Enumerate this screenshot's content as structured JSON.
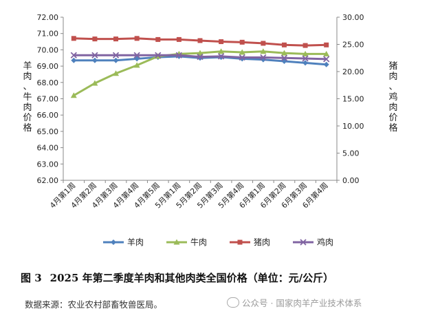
{
  "chart_data": {
    "type": "line",
    "categories": [
      "4月第1周",
      "4月第2周",
      "4月第3周",
      "4月第4周",
      "4月第5周",
      "5月第1周",
      "5月第2周",
      "5月第3周",
      "5月第4周",
      "6月第1周",
      "6月第2周",
      "6月第3周",
      "6月第4周"
    ],
    "left_axis": {
      "label": "羊肉、牛肉价格",
      "ylim": [
        62.0,
        72.0
      ],
      "ticks": [
        "62.00",
        "63.00",
        "64.00",
        "65.00",
        "66.00",
        "67.00",
        "68.00",
        "69.00",
        "70.00",
        "71.00",
        "72.00"
      ]
    },
    "right_axis": {
      "label": "猪肉、鸡肉价格",
      "ylim": [
        0.0,
        30.0
      ],
      "ticks": [
        "0.00",
        "5.00",
        "10.00",
        "15.00",
        "20.00",
        "25.00",
        "30.00"
      ]
    },
    "series": [
      {
        "name": "羊肉",
        "axis": "left",
        "color": "#4f81bd",
        "marker": "diamond",
        "values": [
          69.35,
          69.35,
          69.35,
          69.45,
          69.55,
          69.6,
          69.5,
          69.55,
          69.45,
          69.4,
          69.3,
          69.2,
          69.1
        ]
      },
      {
        "name": "牛肉",
        "axis": "left",
        "color": "#9bbb59",
        "marker": "triangle",
        "values": [
          67.2,
          67.95,
          68.55,
          69.05,
          69.6,
          69.75,
          69.8,
          69.9,
          69.85,
          69.9,
          69.8,
          69.75,
          69.75
        ]
      },
      {
        "name": "猪肉",
        "axis": "right",
        "color": "#c0504d",
        "marker": "square",
        "values": [
          26.1,
          26.0,
          26.0,
          26.1,
          25.9,
          25.9,
          25.7,
          25.5,
          25.4,
          25.2,
          24.9,
          24.8,
          24.9
        ]
      },
      {
        "name": "鸡肉",
        "axis": "right",
        "color": "#8064a2",
        "marker": "x",
        "values": [
          23.0,
          23.0,
          23.0,
          23.0,
          23.0,
          23.0,
          22.7,
          22.8,
          22.6,
          22.6,
          22.5,
          22.4,
          22.3
        ]
      }
    ],
    "grid": false,
    "legend_position": "bottom"
  },
  "caption": {
    "figure_number": "图 3",
    "title": "2025 年第二季度羊肉和其他肉类全国价格（单位：元/公斤）"
  },
  "source_note": "数据来源：农业农村部畜牧兽医局。",
  "watermark": "公众号 · 国家肉羊产业技术体系"
}
